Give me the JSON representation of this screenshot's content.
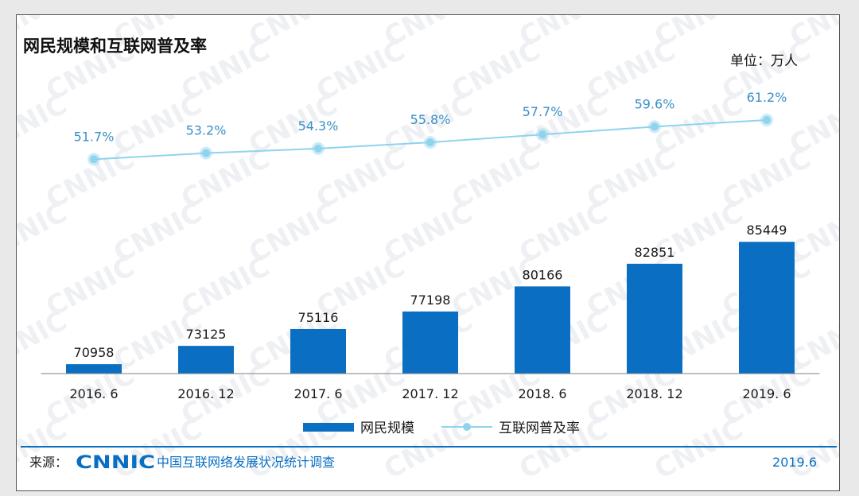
{
  "chart_data": {
    "type": "bar",
    "title": "网民规模和互联网普及率",
    "unit_label": "单位：万人",
    "categories": [
      "2016. 6",
      "2016. 12",
      "2017. 6",
      "2017. 12",
      "2018. 6",
      "2018. 12",
      "2019. 6"
    ],
    "series": [
      {
        "name": "网民规模",
        "type": "bar",
        "values": [
          70958,
          73125,
          75116,
          77198,
          80166,
          82851,
          85449
        ],
        "color": "#0a6fc2"
      },
      {
        "name": "互联网普及率",
        "type": "line",
        "values": [
          51.7,
          53.2,
          54.3,
          55.8,
          57.7,
          59.6,
          61.2
        ],
        "labels": [
          "51.7%",
          "53.2%",
          "54.3%",
          "55.8%",
          "57.7%",
          "59.6%",
          "61.2%"
        ],
        "color": "#8fd3ee",
        "label_color": "#3a8fc8"
      }
    ],
    "legend_position": "bottom",
    "grid": false
  },
  "footer": {
    "source_label": "来源：",
    "logo_text": "CNNIC",
    "source_name": "中国互联网络发展状况统计调查",
    "date": "2019.6"
  },
  "colors": {
    "bar": "#0a6fc2",
    "line": "#8fd3ee",
    "pct_label": "#3a8fc8",
    "footer_rule": "#0a6fc2",
    "logo": "#0a6fc2"
  }
}
